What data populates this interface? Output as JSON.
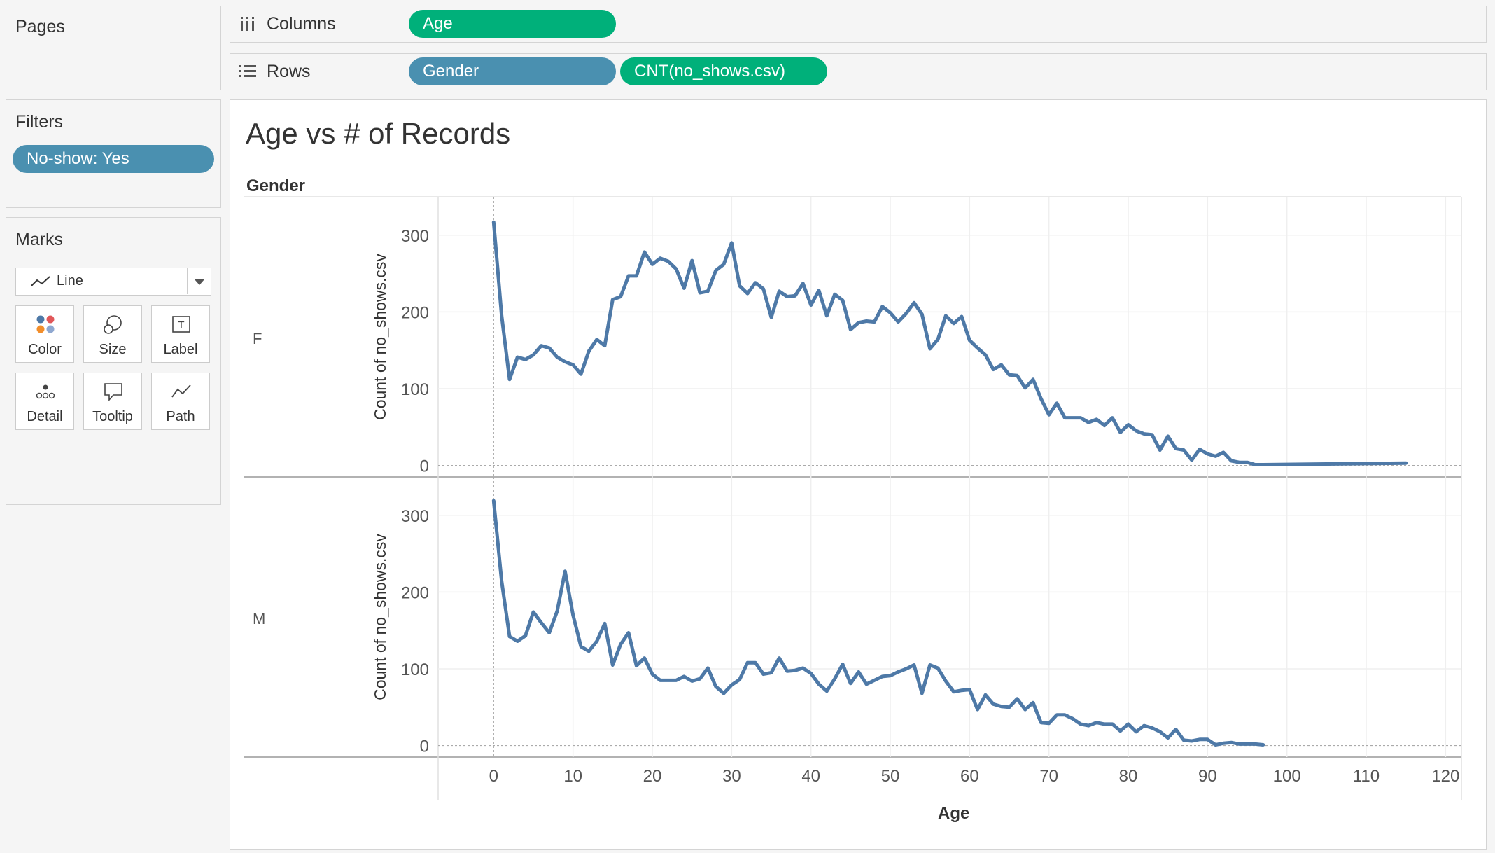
{
  "pages": {
    "title": "Pages"
  },
  "filters": {
    "title": "Filters",
    "pill": "No-show: Yes"
  },
  "marks": {
    "title": "Marks",
    "type_value": "Line",
    "buttons": [
      "Color",
      "Size",
      "Label",
      "Detail",
      "Tooltip",
      "Path"
    ]
  },
  "shelves": {
    "columns_label": "Columns",
    "rows_label": "Rows",
    "columns_pills": [
      "Age"
    ],
    "rows_pills": [
      "Gender",
      "CNT(no_shows.csv)"
    ]
  },
  "colors": {
    "green": "#00b07a",
    "blue": "#4a90b0",
    "line": "#4e79a7"
  },
  "viz": {
    "title": "Age vs # of Records",
    "row_header": "Gender",
    "x_axis_label": "Age",
    "y_axis_label": "Count of no_shows.csv"
  },
  "chart_data": {
    "type": "line",
    "xlabel": "Age",
    "ylabel": "Count of no_shows.csv",
    "xlim": [
      -7,
      122
    ],
    "ylim": [
      -15,
      350
    ],
    "x_ticks": [
      0,
      10,
      20,
      30,
      40,
      50,
      60,
      70,
      80,
      90,
      100,
      110,
      120
    ],
    "y_ticks": [
      0,
      100,
      200,
      300
    ],
    "panels": [
      {
        "row": "F",
        "points": [
          [
            0,
            317
          ],
          [
            1,
            195
          ],
          [
            2,
            112
          ],
          [
            3,
            141
          ],
          [
            4,
            138
          ],
          [
            5,
            144
          ],
          [
            6,
            156
          ],
          [
            7,
            153
          ],
          [
            8,
            141
          ],
          [
            9,
            135
          ],
          [
            10,
            131
          ],
          [
            11,
            119
          ],
          [
            12,
            149
          ],
          [
            13,
            164
          ],
          [
            14,
            156
          ],
          [
            15,
            216
          ],
          [
            16,
            220
          ],
          [
            17,
            247
          ],
          [
            18,
            247
          ],
          [
            19,
            278
          ],
          [
            20,
            262
          ],
          [
            21,
            270
          ],
          [
            22,
            266
          ],
          [
            23,
            256
          ],
          [
            24,
            231
          ],
          [
            25,
            267
          ],
          [
            26,
            225
          ],
          [
            27,
            227
          ],
          [
            28,
            254
          ],
          [
            29,
            262
          ],
          [
            30,
            290
          ],
          [
            31,
            234
          ],
          [
            32,
            224
          ],
          [
            33,
            238
          ],
          [
            34,
            230
          ],
          [
            35,
            193
          ],
          [
            36,
            227
          ],
          [
            37,
            220
          ],
          [
            38,
            221
          ],
          [
            39,
            237
          ],
          [
            40,
            209
          ],
          [
            41,
            228
          ],
          [
            42,
            195
          ],
          [
            43,
            223
          ],
          [
            44,
            215
          ],
          [
            45,
            177
          ],
          [
            46,
            186
          ],
          [
            47,
            188
          ],
          [
            48,
            187
          ],
          [
            49,
            207
          ],
          [
            50,
            199
          ],
          [
            51,
            187
          ],
          [
            52,
            198
          ],
          [
            53,
            212
          ],
          [
            54,
            197
          ],
          [
            55,
            152
          ],
          [
            56,
            164
          ],
          [
            57,
            195
          ],
          [
            58,
            185
          ],
          [
            59,
            194
          ],
          [
            60,
            163
          ],
          [
            61,
            153
          ],
          [
            62,
            144
          ],
          [
            63,
            125
          ],
          [
            64,
            131
          ],
          [
            65,
            118
          ],
          [
            66,
            117
          ],
          [
            67,
            101
          ],
          [
            68,
            112
          ],
          [
            69,
            87
          ],
          [
            70,
            66
          ],
          [
            71,
            81
          ],
          [
            72,
            62
          ],
          [
            73,
            62
          ],
          [
            74,
            62
          ],
          [
            75,
            56
          ],
          [
            76,
            60
          ],
          [
            77,
            52
          ],
          [
            78,
            62
          ],
          [
            79,
            43
          ],
          [
            80,
            53
          ],
          [
            81,
            45
          ],
          [
            82,
            41
          ],
          [
            83,
            40
          ],
          [
            84,
            20
          ],
          [
            85,
            38
          ],
          [
            86,
            22
          ],
          [
            87,
            20
          ],
          [
            88,
            7
          ],
          [
            89,
            21
          ],
          [
            90,
            15
          ],
          [
            91,
            12
          ],
          [
            92,
            17
          ],
          [
            93,
            6
          ],
          [
            94,
            4
          ],
          [
            95,
            4
          ],
          [
            96,
            1
          ],
          [
            97,
            1
          ],
          [
            115,
            3
          ]
        ]
      },
      {
        "row": "M",
        "points": [
          [
            0,
            319
          ],
          [
            1,
            214
          ],
          [
            2,
            142
          ],
          [
            3,
            136
          ],
          [
            4,
            143
          ],
          [
            5,
            174
          ],
          [
            6,
            160
          ],
          [
            7,
            147
          ],
          [
            8,
            175
          ],
          [
            9,
            227
          ],
          [
            10,
            170
          ],
          [
            11,
            129
          ],
          [
            12,
            123
          ],
          [
            13,
            136
          ],
          [
            14,
            159
          ],
          [
            15,
            105
          ],
          [
            16,
            132
          ],
          [
            17,
            147
          ],
          [
            18,
            104
          ],
          [
            19,
            114
          ],
          [
            20,
            93
          ],
          [
            21,
            85
          ],
          [
            22,
            85
          ],
          [
            23,
            85
          ],
          [
            24,
            90
          ],
          [
            25,
            84
          ],
          [
            26,
            87
          ],
          [
            27,
            101
          ],
          [
            28,
            77
          ],
          [
            29,
            68
          ],
          [
            30,
            79
          ],
          [
            31,
            86
          ],
          [
            32,
            108
          ],
          [
            33,
            108
          ],
          [
            34,
            93
          ],
          [
            35,
            95
          ],
          [
            36,
            114
          ],
          [
            37,
            97
          ],
          [
            38,
            98
          ],
          [
            39,
            101
          ],
          [
            40,
            94
          ],
          [
            41,
            80
          ],
          [
            42,
            71
          ],
          [
            43,
            87
          ],
          [
            44,
            106
          ],
          [
            45,
            81
          ],
          [
            46,
            96
          ],
          [
            47,
            80
          ],
          [
            48,
            85
          ],
          [
            49,
            90
          ],
          [
            50,
            91
          ],
          [
            51,
            96
          ],
          [
            52,
            100
          ],
          [
            53,
            105
          ],
          [
            54,
            68
          ],
          [
            55,
            105
          ],
          [
            56,
            101
          ],
          [
            57,
            84
          ],
          [
            58,
            70
          ],
          [
            59,
            72
          ],
          [
            60,
            73
          ],
          [
            61,
            47
          ],
          [
            62,
            66
          ],
          [
            63,
            54
          ],
          [
            64,
            51
          ],
          [
            65,
            50
          ],
          [
            66,
            61
          ],
          [
            67,
            47
          ],
          [
            68,
            56
          ],
          [
            69,
            30
          ],
          [
            70,
            29
          ],
          [
            71,
            40
          ],
          [
            72,
            40
          ],
          [
            73,
            35
          ],
          [
            74,
            28
          ],
          [
            75,
            26
          ],
          [
            76,
            30
          ],
          [
            77,
            28
          ],
          [
            78,
            28
          ],
          [
            79,
            19
          ],
          [
            80,
            28
          ],
          [
            81,
            18
          ],
          [
            82,
            26
          ],
          [
            83,
            23
          ],
          [
            84,
            18
          ],
          [
            85,
            10
          ],
          [
            86,
            21
          ],
          [
            87,
            7
          ],
          [
            88,
            6
          ],
          [
            89,
            8
          ],
          [
            90,
            8
          ],
          [
            91,
            1
          ],
          [
            92,
            3
          ],
          [
            93,
            4
          ],
          [
            94,
            2
          ],
          [
            95,
            2
          ],
          [
            96,
            2
          ],
          [
            97,
            1
          ]
        ]
      }
    ]
  }
}
